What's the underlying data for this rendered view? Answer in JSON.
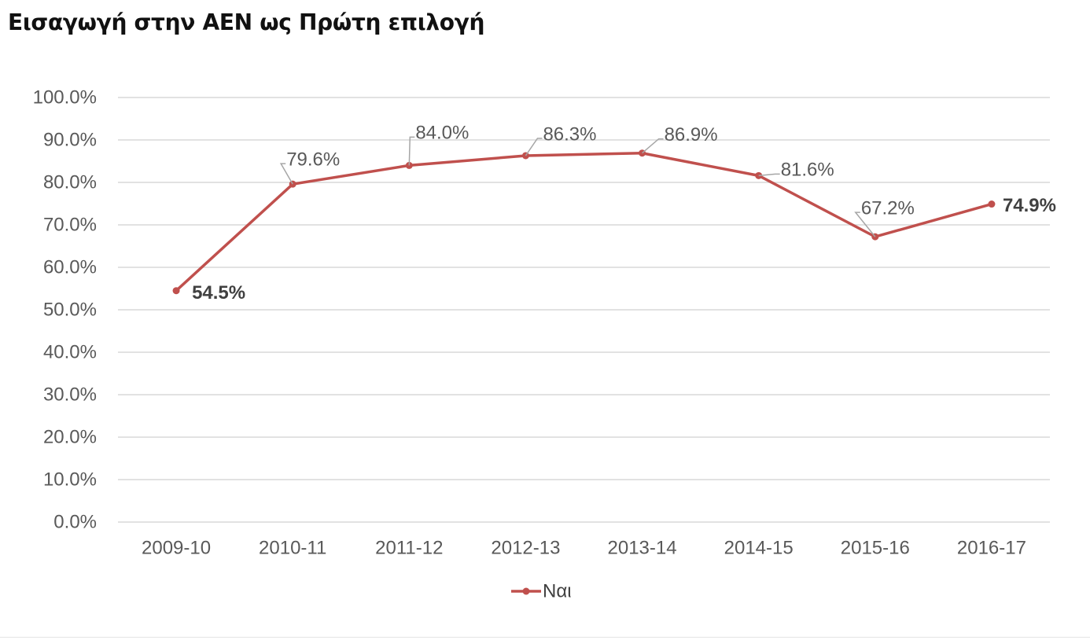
{
  "chart_data": {
    "type": "line",
    "title": "Εισαγωγή στην ΑΕΝ ως Πρώτη επιλογή",
    "categories": [
      "2009-10",
      "2010-11",
      "2011-12",
      "2012-13",
      "2013-14",
      "2014-15",
      "2015-16",
      "2016-17"
    ],
    "series": [
      {
        "name": "Ναι",
        "color": "#c0504d",
        "values": [
          54.5,
          79.6,
          84.0,
          86.3,
          86.9,
          81.6,
          67.2,
          74.9
        ],
        "data_labels": [
          "54.5%",
          "79.6%",
          "84.0%",
          "86.3%",
          "86.9%",
          "81.6%",
          "67.2%",
          "74.9%"
        ],
        "bold_labels": [
          true,
          false,
          false,
          false,
          false,
          false,
          false,
          true
        ]
      }
    ],
    "y_ticks": [
      "0.0%",
      "10.0%",
      "20.0%",
      "30.0%",
      "40.0%",
      "50.0%",
      "60.0%",
      "70.0%",
      "80.0%",
      "90.0%",
      "100.0%"
    ],
    "ylim": [
      0,
      100
    ],
    "grid": true,
    "legend_position": "bottom",
    "xlabel": "",
    "ylabel": ""
  }
}
